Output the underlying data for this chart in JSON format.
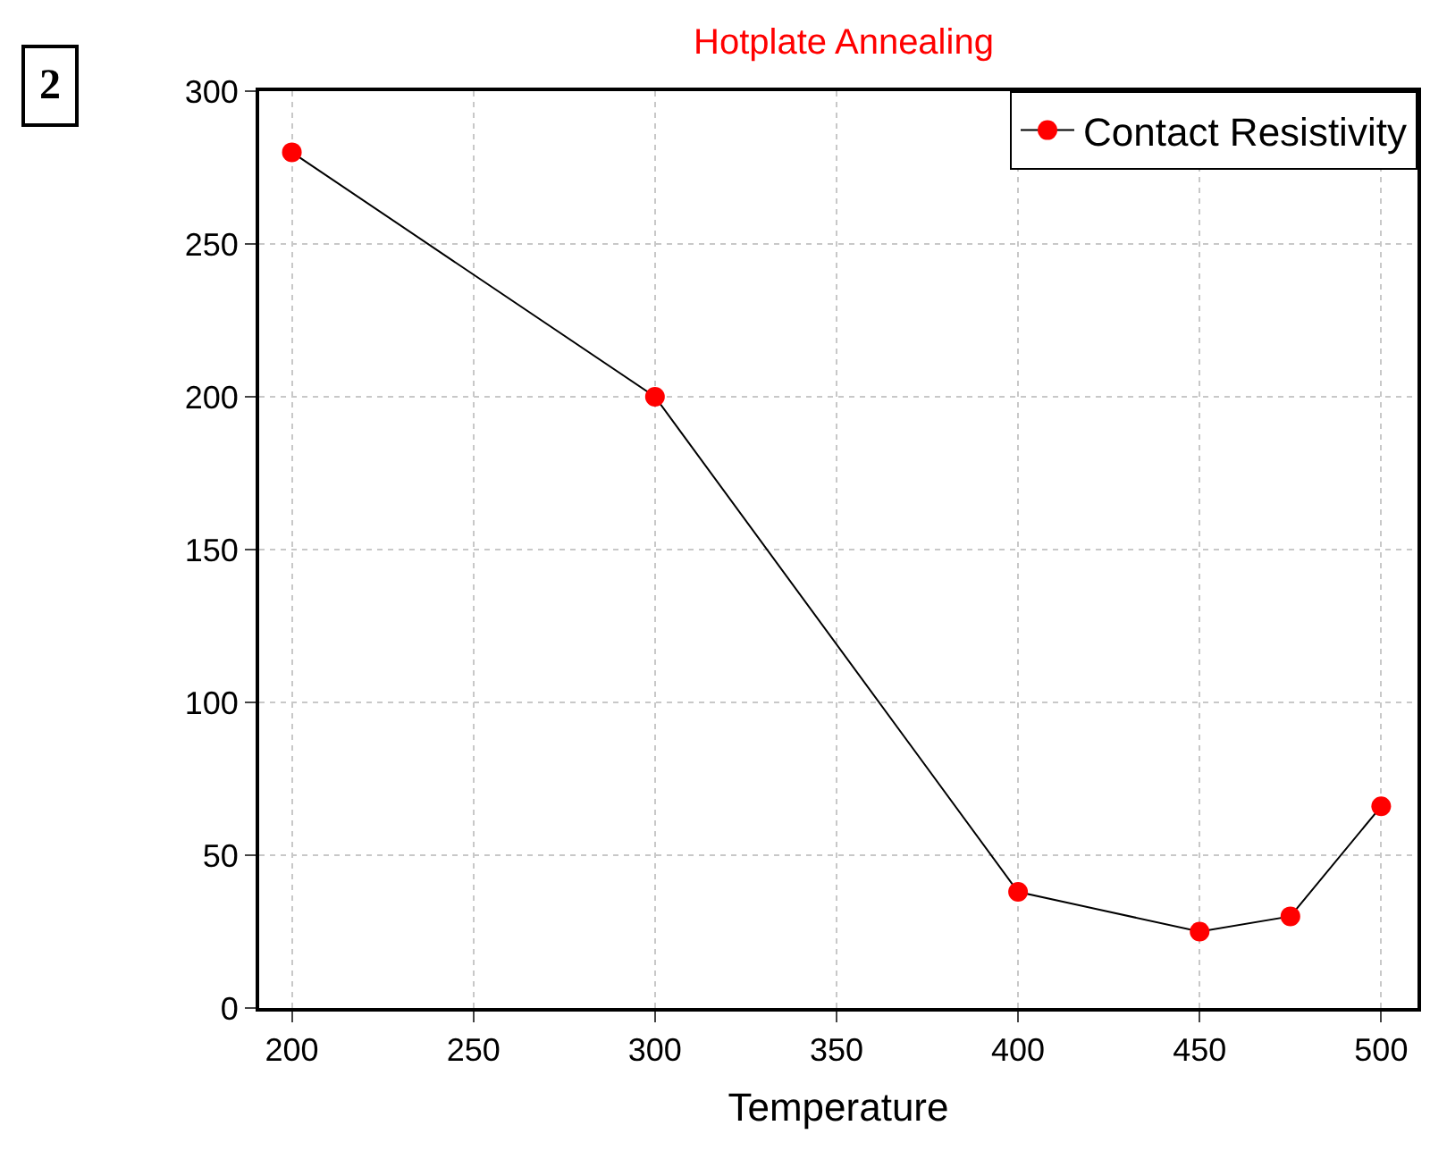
{
  "chart_data": {
    "type": "line",
    "title": "Hotplate Annealing",
    "xlabel": "Temperature",
    "x": [
      200,
      300,
      400,
      450,
      475,
      500
    ],
    "series": [
      {
        "name": "Contact Resistivity",
        "color": "#ff0000",
        "values": [
          280,
          200,
          38,
          25,
          30,
          66
        ]
      }
    ],
    "xlim": [
      191,
      510
    ],
    "ylim": [
      0,
      300
    ],
    "xticks": [
      200,
      250,
      300,
      350,
      400,
      450,
      500
    ],
    "yticks": [
      0,
      50,
      100,
      150,
      200,
      250,
      300
    ],
    "grid": true,
    "legend": "top right",
    "marker": "circle",
    "line_style": "solid",
    "annotations": [
      "2"
    ]
  }
}
